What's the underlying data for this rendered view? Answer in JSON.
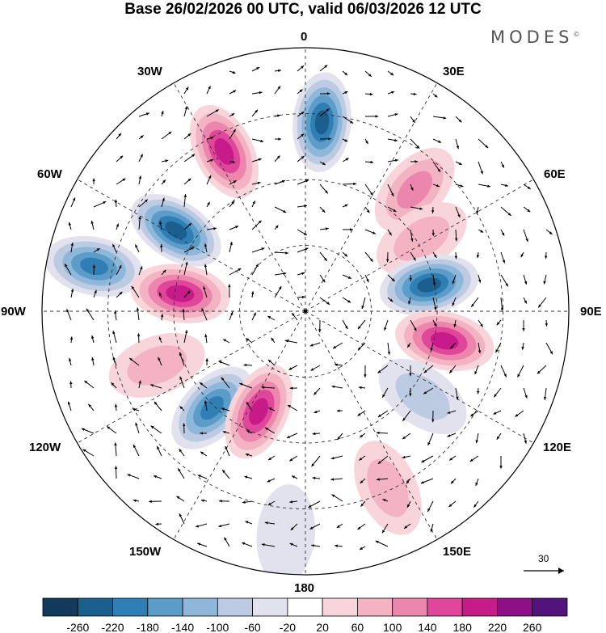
{
  "title": "Base 26/02/2026 00 UTC, valid 06/03/2026 12 UTC",
  "brand": "MODES",
  "brand_mark": "©",
  "longitude_labels": [
    {
      "id": "lon-0",
      "text": "0"
    },
    {
      "id": "lon-30e",
      "text": "30E"
    },
    {
      "id": "lon-60e",
      "text": "60E"
    },
    {
      "id": "lon-90e",
      "text": "90E"
    },
    {
      "id": "lon-120e",
      "text": "120E"
    },
    {
      "id": "lon-150e",
      "text": "150E"
    },
    {
      "id": "lon-180",
      "text": "180"
    },
    {
      "id": "lon-150w",
      "text": "150W"
    },
    {
      "id": "lon-120w",
      "text": "120W"
    },
    {
      "id": "lon-90w",
      "text": "90W"
    },
    {
      "id": "lon-60w",
      "text": "60W"
    },
    {
      "id": "lon-30w",
      "text": "30W"
    }
  ],
  "reference_vector": {
    "value": "30"
  },
  "colorbar": {
    "labels": [
      "-260",
      "-220",
      "-180",
      "-140",
      "-100",
      "-60",
      "-20",
      "20",
      "60",
      "100",
      "140",
      "180",
      "220",
      "260"
    ],
    "colors": [
      "#123a5a",
      "#1a5f8e",
      "#2f7fb4",
      "#5c9cc9",
      "#8fb7da",
      "#bccbe2",
      "#e2e2ef",
      "#ffffff",
      "#f8d5da",
      "#f4b3c3",
      "#ec86ad",
      "#e0479a",
      "#c71b8a",
      "#8e0f86",
      "#53137c"
    ]
  },
  "anomaly_cells": [
    {
      "name": "negative-anomaly-north",
      "level": 1,
      "lon": 5,
      "r": 0.72
    },
    {
      "name": "positive-anomaly-north-west",
      "level": 12,
      "lon": -27,
      "r": 0.68
    },
    {
      "name": "negative-anomaly-atlantic",
      "level": 1,
      "lon": -58,
      "r": 0.58
    },
    {
      "name": "negative-anomaly-west",
      "level": 2,
      "lon": -78,
      "r": 0.82
    },
    {
      "name": "positive-anomaly-greenland",
      "level": 12,
      "lon": -82,
      "r": 0.48
    },
    {
      "name": "positive-anomaly-europe",
      "level": 10,
      "lon": 42,
      "r": 0.62
    },
    {
      "name": "positive-anomaly-north-east",
      "level": 9,
      "lon": 58,
      "r": 0.52
    },
    {
      "name": "negative-anomaly-siberia",
      "level": 1,
      "lon": 78,
      "r": 0.48
    },
    {
      "name": "positive-anomaly-east",
      "level": 12,
      "lon": 102,
      "r": 0.54
    },
    {
      "name": "negative-anomaly-pacific-west",
      "level": 2,
      "lon": -136,
      "r": 0.51
    },
    {
      "name": "positive-anomaly-alaska",
      "level": 12,
      "lon": -155,
      "r": 0.42
    },
    {
      "name": "positive-anomaly-pacific-east",
      "level": 9,
      "lon": 155,
      "r": 0.74
    },
    {
      "name": "negative-anomaly-east-asia",
      "level": 5,
      "lon": 126,
      "r": 0.55
    },
    {
      "name": "negative-anomaly-pacific",
      "level": 6,
      "lon": -175,
      "r": 0.85
    },
    {
      "name": "positive-anomaly-canada",
      "level": 9,
      "lon": -110,
      "r": 0.6
    }
  ]
}
